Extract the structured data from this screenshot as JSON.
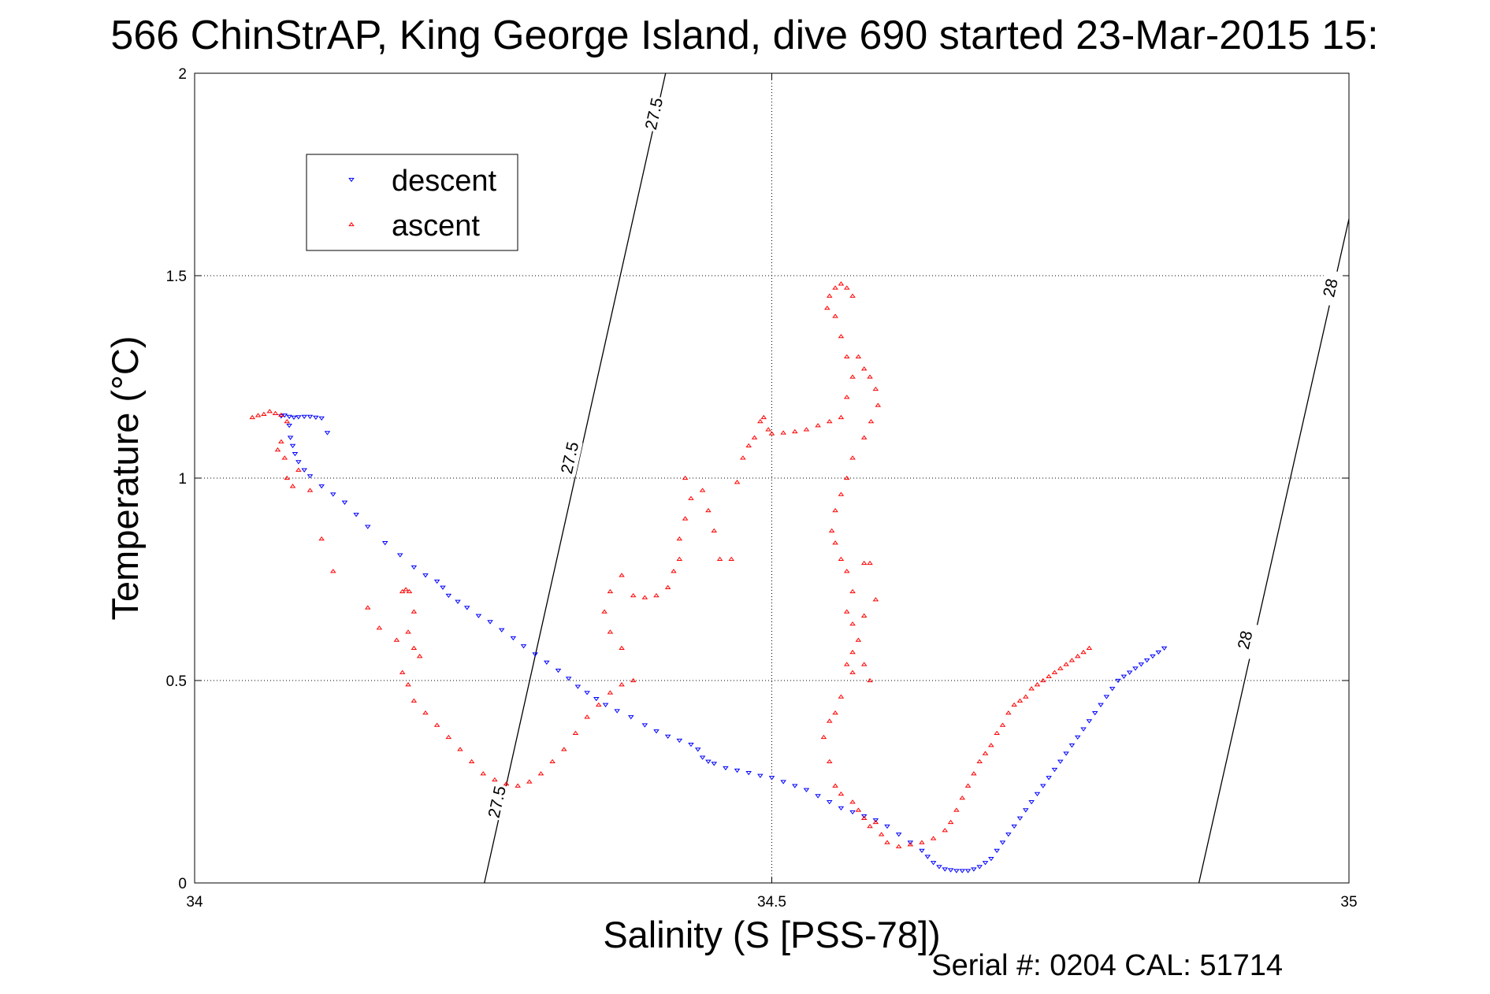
{
  "title": "566 ChinStrAP, King George Island, dive 690 started 23-Mar-2015 15:",
  "footer": "Serial #: 0204  CAL: 51714",
  "colors": {
    "descent": "#0000ff",
    "ascent": "#ff0000",
    "isopycnal": "#000000"
  },
  "chart_data": {
    "type": "scatter",
    "xlabel": "Salinity (S [PSS-78])",
    "ylabel": "Temperature (°C)",
    "xlim": [
      34,
      35
    ],
    "ylim": [
      0,
      2
    ],
    "xticks": [
      34,
      34.5,
      35
    ],
    "xtick_labels": [
      "34",
      "34.5",
      "35"
    ],
    "yticks": [
      0,
      0.5,
      1,
      1.5,
      2
    ],
    "ytick_labels": [
      "0",
      "0.5",
      "1",
      "1.5",
      "2"
    ],
    "grid": true,
    "legend": {
      "position": "top-left",
      "entries": [
        "descent",
        "ascent"
      ]
    },
    "contours": [
      {
        "label": "27.5",
        "points": [
          [
            34.251,
            0.0
          ],
          [
            34.408,
            2.0
          ]
        ],
        "label_positions": [
          [
            34.262,
            0.2
          ],
          [
            34.325,
            1.05
          ],
          [
            34.398,
            1.9
          ]
        ]
      },
      {
        "label": "28",
        "points": [
          [
            34.87,
            0.0
          ],
          [
            35.0,
            1.64
          ]
        ],
        "label_positions": [
          [
            34.91,
            0.6
          ],
          [
            34.984,
            1.47
          ]
        ]
      }
    ],
    "series": [
      {
        "name": "descent",
        "marker": "triangle-down",
        "points": [
          [
            34.075,
            1.153
          ],
          [
            34.078,
            1.155
          ],
          [
            34.082,
            1.152
          ],
          [
            34.086,
            1.15
          ],
          [
            34.09,
            1.151
          ],
          [
            34.095,
            1.152
          ],
          [
            34.1,
            1.152
          ],
          [
            34.105,
            1.15
          ],
          [
            34.11,
            1.148
          ],
          [
            34.115,
            1.112
          ],
          [
            34.082,
            1.13
          ],
          [
            34.083,
            1.1
          ],
          [
            34.085,
            1.08
          ],
          [
            34.087,
            1.06
          ],
          [
            34.09,
            1.04
          ],
          [
            34.095,
            1.02
          ],
          [
            34.1,
            1.005
          ],
          [
            34.11,
            0.98
          ],
          [
            34.12,
            0.96
          ],
          [
            34.13,
            0.94
          ],
          [
            34.14,
            0.91
          ],
          [
            34.15,
            0.88
          ],
          [
            34.165,
            0.84
          ],
          [
            34.178,
            0.81
          ],
          [
            34.19,
            0.78
          ],
          [
            34.2,
            0.76
          ],
          [
            34.21,
            0.745
          ],
          [
            34.215,
            0.73
          ],
          [
            34.22,
            0.71
          ],
          [
            34.228,
            0.695
          ],
          [
            34.236,
            0.68
          ],
          [
            34.246,
            0.66
          ],
          [
            34.256,
            0.645
          ],
          [
            34.266,
            0.625
          ],
          [
            34.276,
            0.605
          ],
          [
            34.285,
            0.585
          ],
          [
            34.295,
            0.565
          ],
          [
            34.305,
            0.545
          ],
          [
            34.315,
            0.525
          ],
          [
            34.324,
            0.505
          ],
          [
            34.332,
            0.485
          ],
          [
            34.34,
            0.47
          ],
          [
            34.348,
            0.455
          ],
          [
            34.356,
            0.44
          ],
          [
            34.366,
            0.425
          ],
          [
            34.378,
            0.41
          ],
          [
            34.39,
            0.39
          ],
          [
            34.4,
            0.375
          ],
          [
            34.41,
            0.362
          ],
          [
            34.42,
            0.352
          ],
          [
            34.43,
            0.342
          ],
          [
            34.436,
            0.33
          ],
          [
            34.44,
            0.31
          ],
          [
            34.445,
            0.3
          ],
          [
            34.45,
            0.295
          ],
          [
            34.46,
            0.284
          ],
          [
            34.47,
            0.278
          ],
          [
            34.48,
            0.272
          ],
          [
            34.49,
            0.265
          ],
          [
            34.5,
            0.26
          ],
          [
            34.51,
            0.25
          ],
          [
            34.52,
            0.24
          ],
          [
            34.53,
            0.23
          ],
          [
            34.54,
            0.215
          ],
          [
            34.55,
            0.2
          ],
          [
            34.56,
            0.185
          ],
          [
            34.57,
            0.175
          ],
          [
            34.58,
            0.165
          ],
          [
            34.59,
            0.155
          ],
          [
            34.6,
            0.14
          ],
          [
            34.61,
            0.12
          ],
          [
            34.62,
            0.1
          ],
          [
            34.63,
            0.08
          ],
          [
            34.635,
            0.065
          ],
          [
            34.64,
            0.05
          ],
          [
            34.645,
            0.04
          ],
          [
            34.65,
            0.034
          ],
          [
            34.655,
            0.032
          ],
          [
            34.66,
            0.03
          ],
          [
            34.665,
            0.03
          ],
          [
            34.67,
            0.03
          ],
          [
            34.675,
            0.034
          ],
          [
            34.68,
            0.04
          ],
          [
            34.685,
            0.05
          ],
          [
            34.69,
            0.06
          ],
          [
            34.695,
            0.08
          ],
          [
            34.7,
            0.1
          ],
          [
            34.705,
            0.12
          ],
          [
            34.71,
            0.14
          ],
          [
            34.715,
            0.16
          ],
          [
            34.72,
            0.18
          ],
          [
            34.725,
            0.2
          ],
          [
            34.73,
            0.22
          ],
          [
            34.735,
            0.24
          ],
          [
            34.74,
            0.26
          ],
          [
            34.745,
            0.28
          ],
          [
            34.75,
            0.3
          ],
          [
            34.755,
            0.32
          ],
          [
            34.76,
            0.34
          ],
          [
            34.765,
            0.36
          ],
          [
            34.77,
            0.38
          ],
          [
            34.775,
            0.4
          ],
          [
            34.78,
            0.42
          ],
          [
            34.785,
            0.44
          ],
          [
            34.79,
            0.46
          ],
          [
            34.795,
            0.48
          ],
          [
            34.8,
            0.5
          ],
          [
            34.805,
            0.51
          ],
          [
            34.81,
            0.52
          ],
          [
            34.815,
            0.53
          ],
          [
            34.82,
            0.54
          ],
          [
            34.825,
            0.55
          ],
          [
            34.83,
            0.56
          ],
          [
            34.835,
            0.57
          ],
          [
            34.84,
            0.58
          ]
        ]
      },
      {
        "name": "ascent",
        "marker": "triangle-up",
        "points": [
          [
            34.05,
            1.15
          ],
          [
            34.055,
            1.155
          ],
          [
            34.06,
            1.158
          ],
          [
            34.065,
            1.165
          ],
          [
            34.07,
            1.16
          ],
          [
            34.075,
            1.156
          ],
          [
            34.08,
            1.14
          ],
          [
            34.075,
            1.09
          ],
          [
            34.072,
            1.07
          ],
          [
            34.078,
            1.05
          ],
          [
            34.08,
            1.0
          ],
          [
            34.085,
            0.98
          ],
          [
            34.09,
            1.02
          ],
          [
            34.1,
            0.97
          ],
          [
            34.11,
            0.85
          ],
          [
            34.12,
            0.77
          ],
          [
            34.15,
            0.68
          ],
          [
            34.16,
            0.63
          ],
          [
            34.175,
            0.6
          ],
          [
            34.18,
            0.72
          ],
          [
            34.183,
            0.725
          ],
          [
            34.186,
            0.72
          ],
          [
            34.19,
            0.67
          ],
          [
            34.185,
            0.62
          ],
          [
            34.19,
            0.58
          ],
          [
            34.195,
            0.56
          ],
          [
            34.18,
            0.52
          ],
          [
            34.185,
            0.49
          ],
          [
            34.19,
            0.45
          ],
          [
            34.2,
            0.42
          ],
          [
            34.21,
            0.39
          ],
          [
            34.22,
            0.36
          ],
          [
            34.23,
            0.33
          ],
          [
            34.24,
            0.3
          ],
          [
            34.25,
            0.27
          ],
          [
            34.26,
            0.255
          ],
          [
            34.27,
            0.245
          ],
          [
            34.28,
            0.24
          ],
          [
            34.29,
            0.25
          ],
          [
            34.3,
            0.27
          ],
          [
            34.31,
            0.3
          ],
          [
            34.32,
            0.33
          ],
          [
            34.33,
            0.37
          ],
          [
            34.34,
            0.41
          ],
          [
            34.35,
            0.44
          ],
          [
            34.36,
            0.47
          ],
          [
            34.37,
            0.49
          ],
          [
            34.38,
            0.5
          ],
          [
            34.37,
            0.58
          ],
          [
            34.36,
            0.62
          ],
          [
            34.355,
            0.67
          ],
          [
            34.36,
            0.72
          ],
          [
            34.37,
            0.76
          ],
          [
            34.38,
            0.71
          ],
          [
            34.39,
            0.705
          ],
          [
            34.4,
            0.71
          ],
          [
            34.41,
            0.73
          ],
          [
            34.415,
            0.77
          ],
          [
            34.42,
            0.8
          ],
          [
            34.42,
            0.85
          ],
          [
            34.425,
            0.9
          ],
          [
            34.43,
            0.95
          ],
          [
            34.425,
            1.0
          ],
          [
            34.44,
            0.97
          ],
          [
            34.445,
            0.92
          ],
          [
            34.45,
            0.87
          ],
          [
            34.455,
            0.8
          ],
          [
            34.465,
            0.8
          ],
          [
            34.47,
            0.99
          ],
          [
            34.475,
            1.05
          ],
          [
            34.48,
            1.08
          ],
          [
            34.485,
            1.1
          ],
          [
            34.49,
            1.14
          ],
          [
            34.493,
            1.15
          ],
          [
            34.497,
            1.12
          ],
          [
            34.5,
            1.11
          ],
          [
            34.51,
            1.112
          ],
          [
            34.52,
            1.115
          ],
          [
            34.53,
            1.12
          ],
          [
            34.54,
            1.13
          ],
          [
            34.55,
            1.14
          ],
          [
            34.56,
            1.15
          ],
          [
            34.565,
            1.2
          ],
          [
            34.57,
            1.25
          ],
          [
            34.565,
            1.3
          ],
          [
            34.56,
            1.35
          ],
          [
            34.555,
            1.4
          ],
          [
            34.548,
            1.42
          ],
          [
            34.55,
            1.45
          ],
          [
            34.555,
            1.47
          ],
          [
            34.56,
            1.48
          ],
          [
            34.565,
            1.47
          ],
          [
            34.57,
            1.45
          ],
          [
            34.575,
            1.3
          ],
          [
            34.58,
            1.27
          ],
          [
            34.585,
            1.25
          ],
          [
            34.59,
            1.22
          ],
          [
            34.592,
            1.18
          ],
          [
            34.586,
            1.14
          ],
          [
            34.58,
            1.1
          ],
          [
            34.57,
            1.05
          ],
          [
            34.565,
            1.0
          ],
          [
            34.56,
            0.96
          ],
          [
            34.555,
            0.92
          ],
          [
            34.552,
            0.87
          ],
          [
            34.555,
            0.84
          ],
          [
            34.56,
            0.8
          ],
          [
            34.565,
            0.77
          ],
          [
            34.57,
            0.72
          ],
          [
            34.565,
            0.67
          ],
          [
            34.57,
            0.64
          ],
          [
            34.575,
            0.6
          ],
          [
            34.58,
            0.79
          ],
          [
            34.585,
            0.79
          ],
          [
            34.59,
            0.7
          ],
          [
            34.58,
            0.66
          ],
          [
            34.57,
            0.57
          ],
          [
            34.565,
            0.54
          ],
          [
            34.57,
            0.52
          ],
          [
            34.58,
            0.54
          ],
          [
            34.585,
            0.5
          ],
          [
            34.56,
            0.46
          ],
          [
            34.555,
            0.42
          ],
          [
            34.55,
            0.4
          ],
          [
            34.545,
            0.36
          ],
          [
            34.55,
            0.3
          ],
          [
            34.555,
            0.24
          ],
          [
            34.56,
            0.22
          ],
          [
            34.57,
            0.2
          ],
          [
            34.575,
            0.18
          ],
          [
            34.58,
            0.16
          ],
          [
            34.585,
            0.14
          ],
          [
            34.59,
            0.15
          ],
          [
            34.595,
            0.12
          ],
          [
            34.6,
            0.1
          ],
          [
            34.61,
            0.09
          ],
          [
            34.62,
            0.095
          ],
          [
            34.63,
            0.1
          ],
          [
            34.64,
            0.11
          ],
          [
            34.65,
            0.13
          ],
          [
            34.655,
            0.15
          ],
          [
            34.66,
            0.18
          ],
          [
            34.665,
            0.21
          ],
          [
            34.67,
            0.24
          ],
          [
            34.675,
            0.27
          ],
          [
            34.68,
            0.3
          ],
          [
            34.685,
            0.32
          ],
          [
            34.69,
            0.34
          ],
          [
            34.695,
            0.37
          ],
          [
            34.7,
            0.39
          ],
          [
            34.705,
            0.42
          ],
          [
            34.71,
            0.44
          ],
          [
            34.715,
            0.45
          ],
          [
            34.72,
            0.46
          ],
          [
            34.725,
            0.48
          ],
          [
            34.73,
            0.49
          ],
          [
            34.735,
            0.5
          ],
          [
            34.74,
            0.51
          ],
          [
            34.745,
            0.52
          ],
          [
            34.75,
            0.53
          ],
          [
            34.755,
            0.54
          ],
          [
            34.76,
            0.55
          ],
          [
            34.765,
            0.56
          ],
          [
            34.77,
            0.57
          ],
          [
            34.775,
            0.58
          ]
        ]
      }
    ]
  }
}
